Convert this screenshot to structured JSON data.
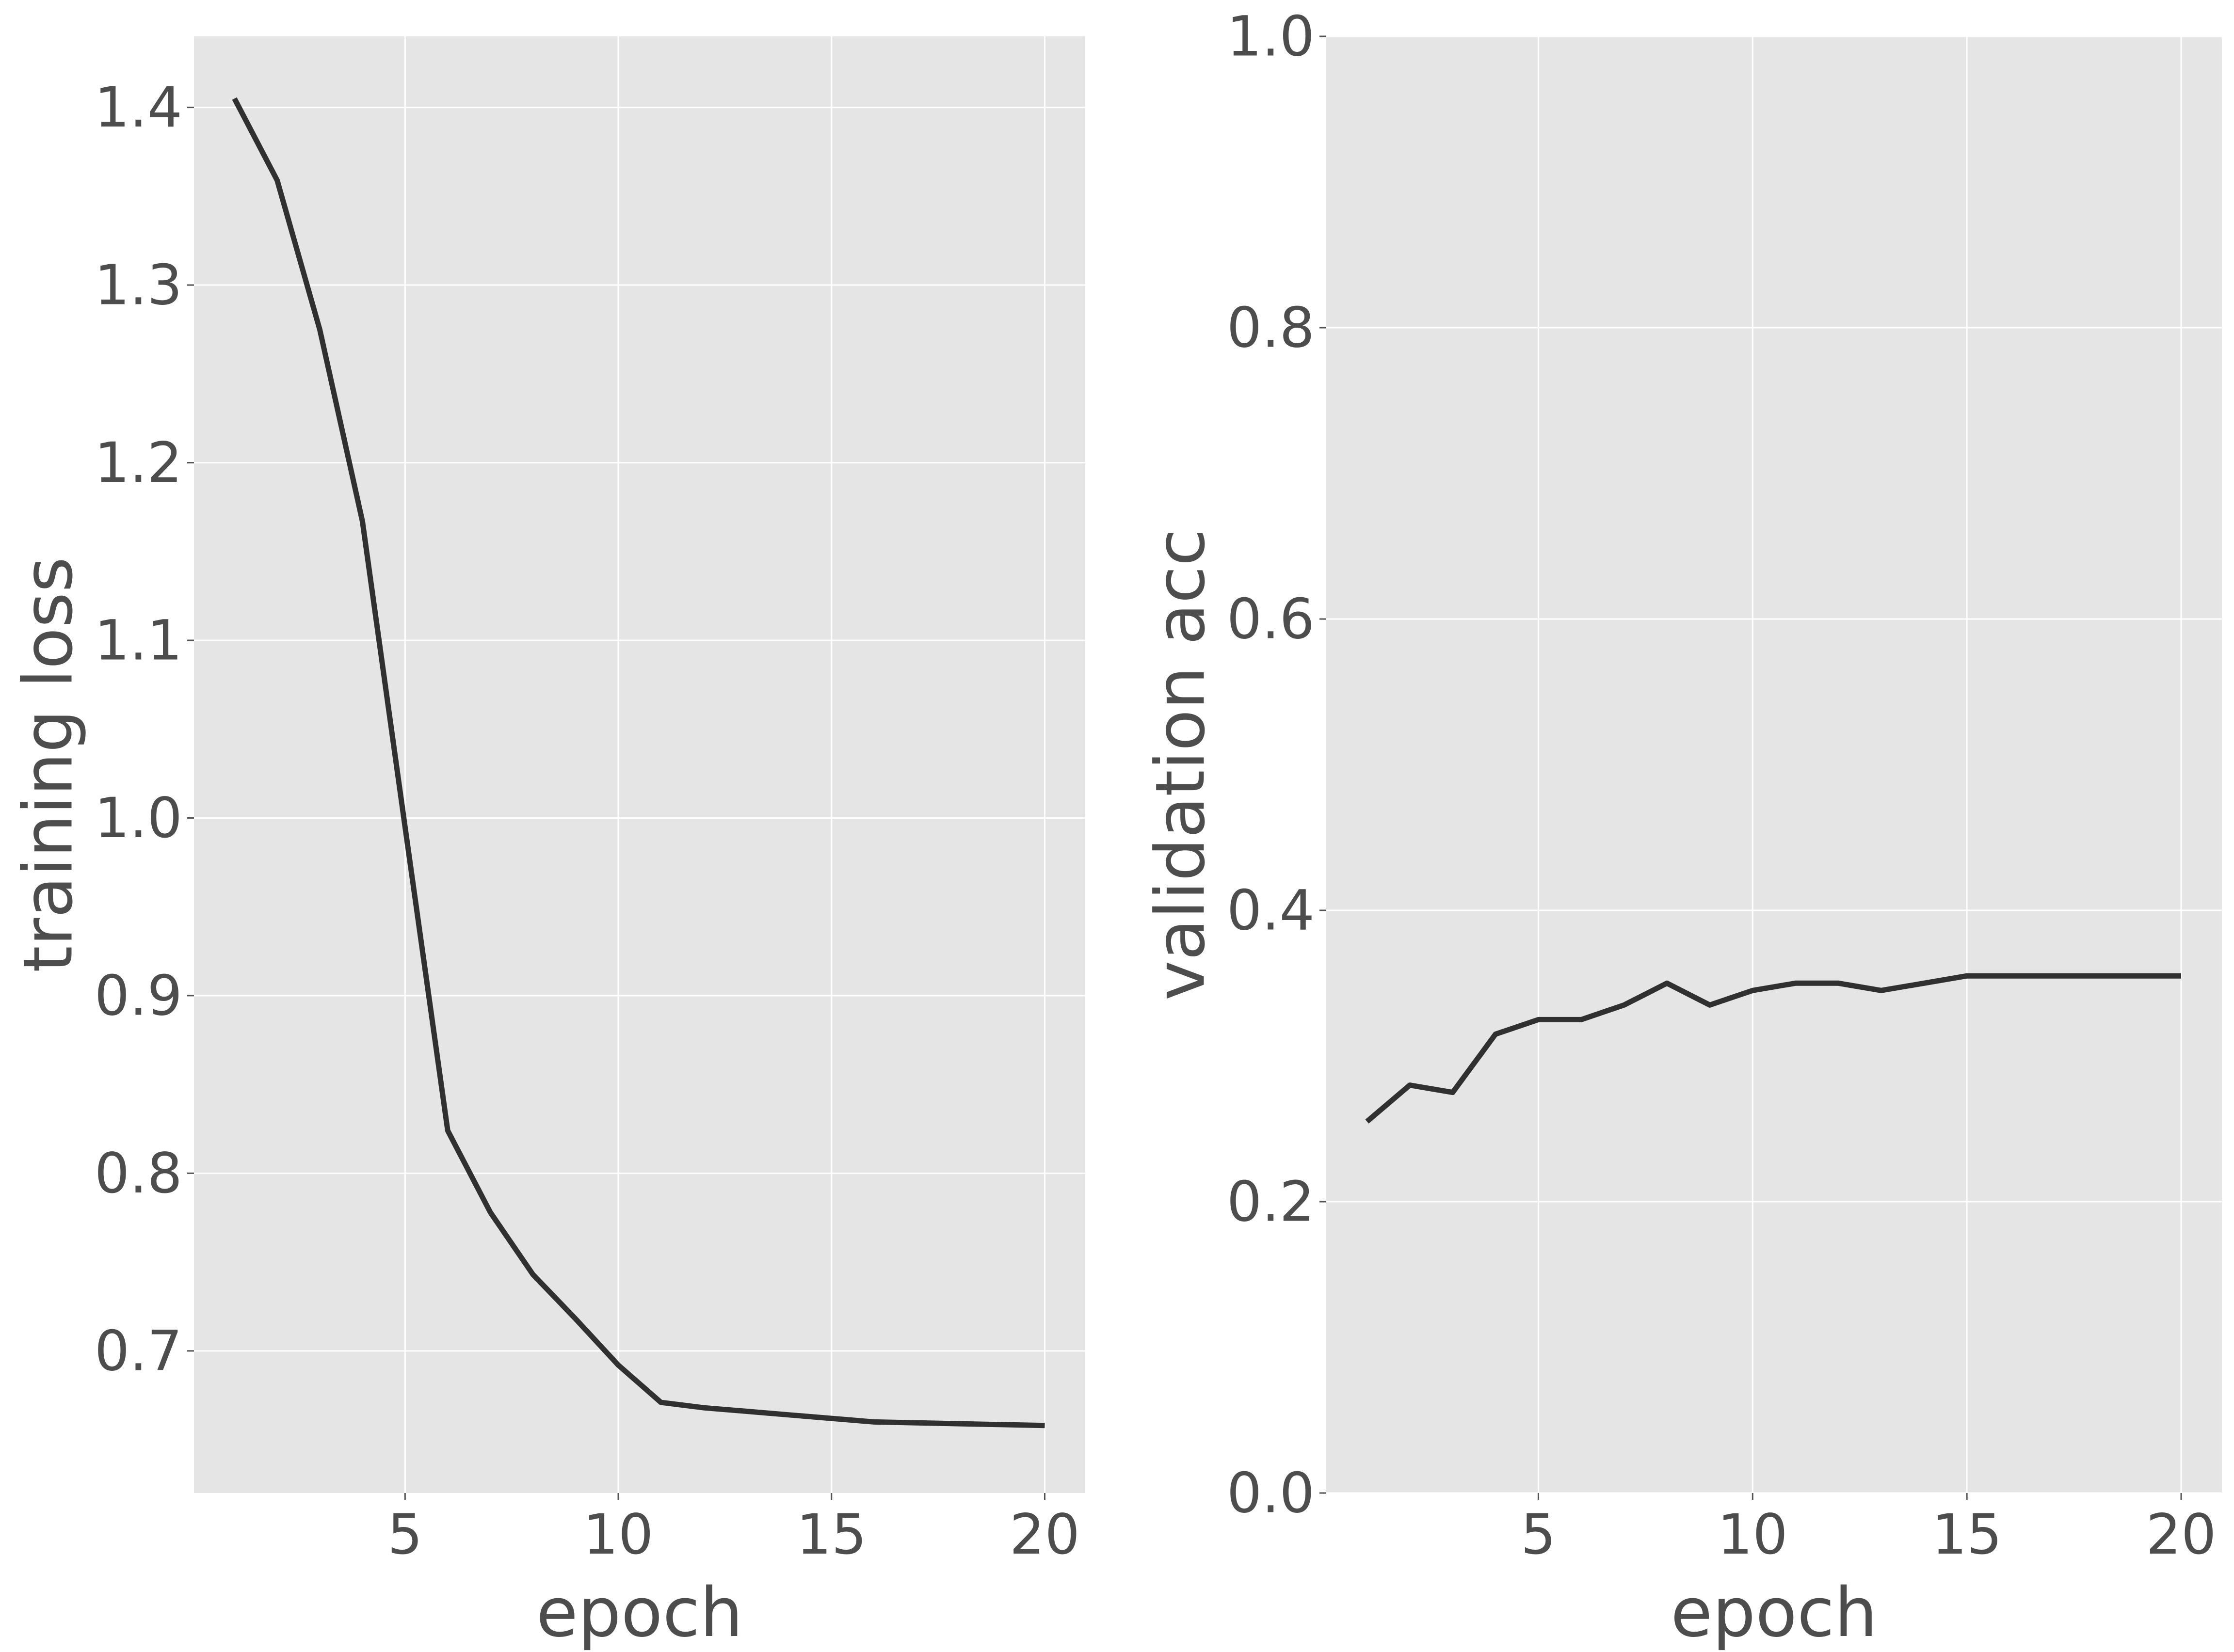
{
  "chart_data": [
    {
      "type": "line",
      "xlabel": "epoch",
      "ylabel": "training loss",
      "xlim": [
        0.05,
        20.95
      ],
      "ylim": [
        0.62,
        1.44
      ],
      "xticks": [
        5,
        10,
        15,
        20
      ],
      "xtick_labels": [
        "5",
        "10",
        "15",
        "20"
      ],
      "yticks": [
        0.7,
        0.8,
        0.9,
        1.0,
        1.1,
        1.2,
        1.3,
        1.4
      ],
      "ytick_labels": [
        "0.7",
        "0.8",
        "0.9",
        "1.0",
        "1.1",
        "1.2",
        "1.3",
        "1.4"
      ],
      "grid": true,
      "color": "#303030",
      "x": [
        1,
        2,
        3,
        4,
        5,
        6,
        7,
        8,
        9,
        10,
        11,
        12,
        13,
        14,
        15,
        16,
        17,
        18,
        19,
        20
      ],
      "values": [
        1.405,
        1.359,
        1.275,
        1.167,
        0.995,
        0.824,
        0.778,
        0.743,
        0.718,
        0.692,
        0.671,
        0.668,
        0.666,
        0.664,
        0.662,
        0.66,
        0.6595,
        0.659,
        0.6585,
        0.658
      ]
    },
    {
      "type": "line",
      "xlabel": "epoch",
      "ylabel": "validation acc",
      "xlim": [
        0.05,
        20.95
      ],
      "ylim": [
        0.0,
        1.0
      ],
      "xticks": [
        5,
        10,
        15,
        20
      ],
      "xtick_labels": [
        "5",
        "10",
        "15",
        "20"
      ],
      "yticks": [
        0.0,
        0.2,
        0.4,
        0.6,
        0.8,
        1.0
      ],
      "ytick_labels": [
        "0.0",
        "0.2",
        "0.4",
        "0.6",
        "0.8",
        "1.0"
      ],
      "grid": true,
      "color": "#303030",
      "x": [
        1,
        2,
        3,
        4,
        5,
        6,
        7,
        8,
        9,
        10,
        11,
        12,
        13,
        14,
        15,
        16,
        17,
        18,
        19,
        20
      ],
      "values": [
        0.255,
        0.28,
        0.275,
        0.315,
        0.325,
        0.325,
        0.335,
        0.35,
        0.335,
        0.345,
        0.35,
        0.35,
        0.345,
        0.35,
        0.355,
        0.355,
        0.355,
        0.355,
        0.355,
        0.355
      ]
    }
  ]
}
